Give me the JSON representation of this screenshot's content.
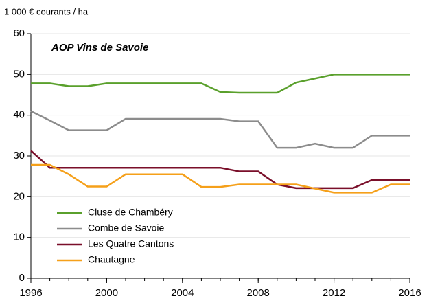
{
  "chart_data": {
    "type": "line",
    "title": "AOP Vins de Savoie",
    "y_label": "1 000  € courants / ha",
    "x": [
      1996,
      1997,
      1998,
      1999,
      2000,
      2001,
      2002,
      2003,
      2004,
      2005,
      2006,
      2007,
      2008,
      2009,
      2010,
      2011,
      2012,
      2013,
      2014,
      2015,
      2016
    ],
    "series": [
      {
        "name": "Cluse de Chambéry",
        "color": "#5aa02c",
        "values": [
          47.8,
          47.8,
          47.1,
          47.1,
          47.8,
          47.8,
          47.8,
          47.8,
          47.8,
          47.8,
          45.7,
          45.5,
          45.5,
          45.5,
          48,
          49,
          50,
          50,
          50,
          50,
          50
        ]
      },
      {
        "name": "Combe de Savoie",
        "color": "#8c8c8c",
        "values": [
          41,
          38.7,
          36.3,
          36.3,
          36.3,
          39.1,
          39.1,
          39.1,
          39.1,
          39.1,
          39.1,
          38.5,
          38.5,
          32,
          32,
          33,
          32,
          32,
          35,
          35,
          35
        ]
      },
      {
        "name": "Les Quatre Cantons",
        "color": "#7a0f2a",
        "values": [
          31.3,
          27.1,
          27.1,
          27.1,
          27.1,
          27.1,
          27.1,
          27.1,
          27.1,
          27.1,
          27.1,
          26.2,
          26.2,
          23,
          22.1,
          22.1,
          22.1,
          22.1,
          24.1,
          24.1,
          24.1
        ]
      },
      {
        "name": "Chautagne",
        "color": "#f5a01a",
        "values": [
          27.8,
          27.8,
          25.5,
          22.5,
          22.5,
          25.5,
          25.5,
          25.5,
          25.5,
          22.4,
          22.4,
          23,
          23,
          23,
          23,
          22,
          21,
          21,
          21,
          23,
          23
        ]
      }
    ],
    "xlim": [
      1996,
      2016
    ],
    "xticks": [
      1996,
      2000,
      2004,
      2008,
      2012,
      2016
    ],
    "ylim": [
      0,
      60
    ],
    "yticks": [
      0,
      10,
      20,
      30,
      40,
      50,
      60
    ],
    "grid": true,
    "legend": "lower left"
  }
}
